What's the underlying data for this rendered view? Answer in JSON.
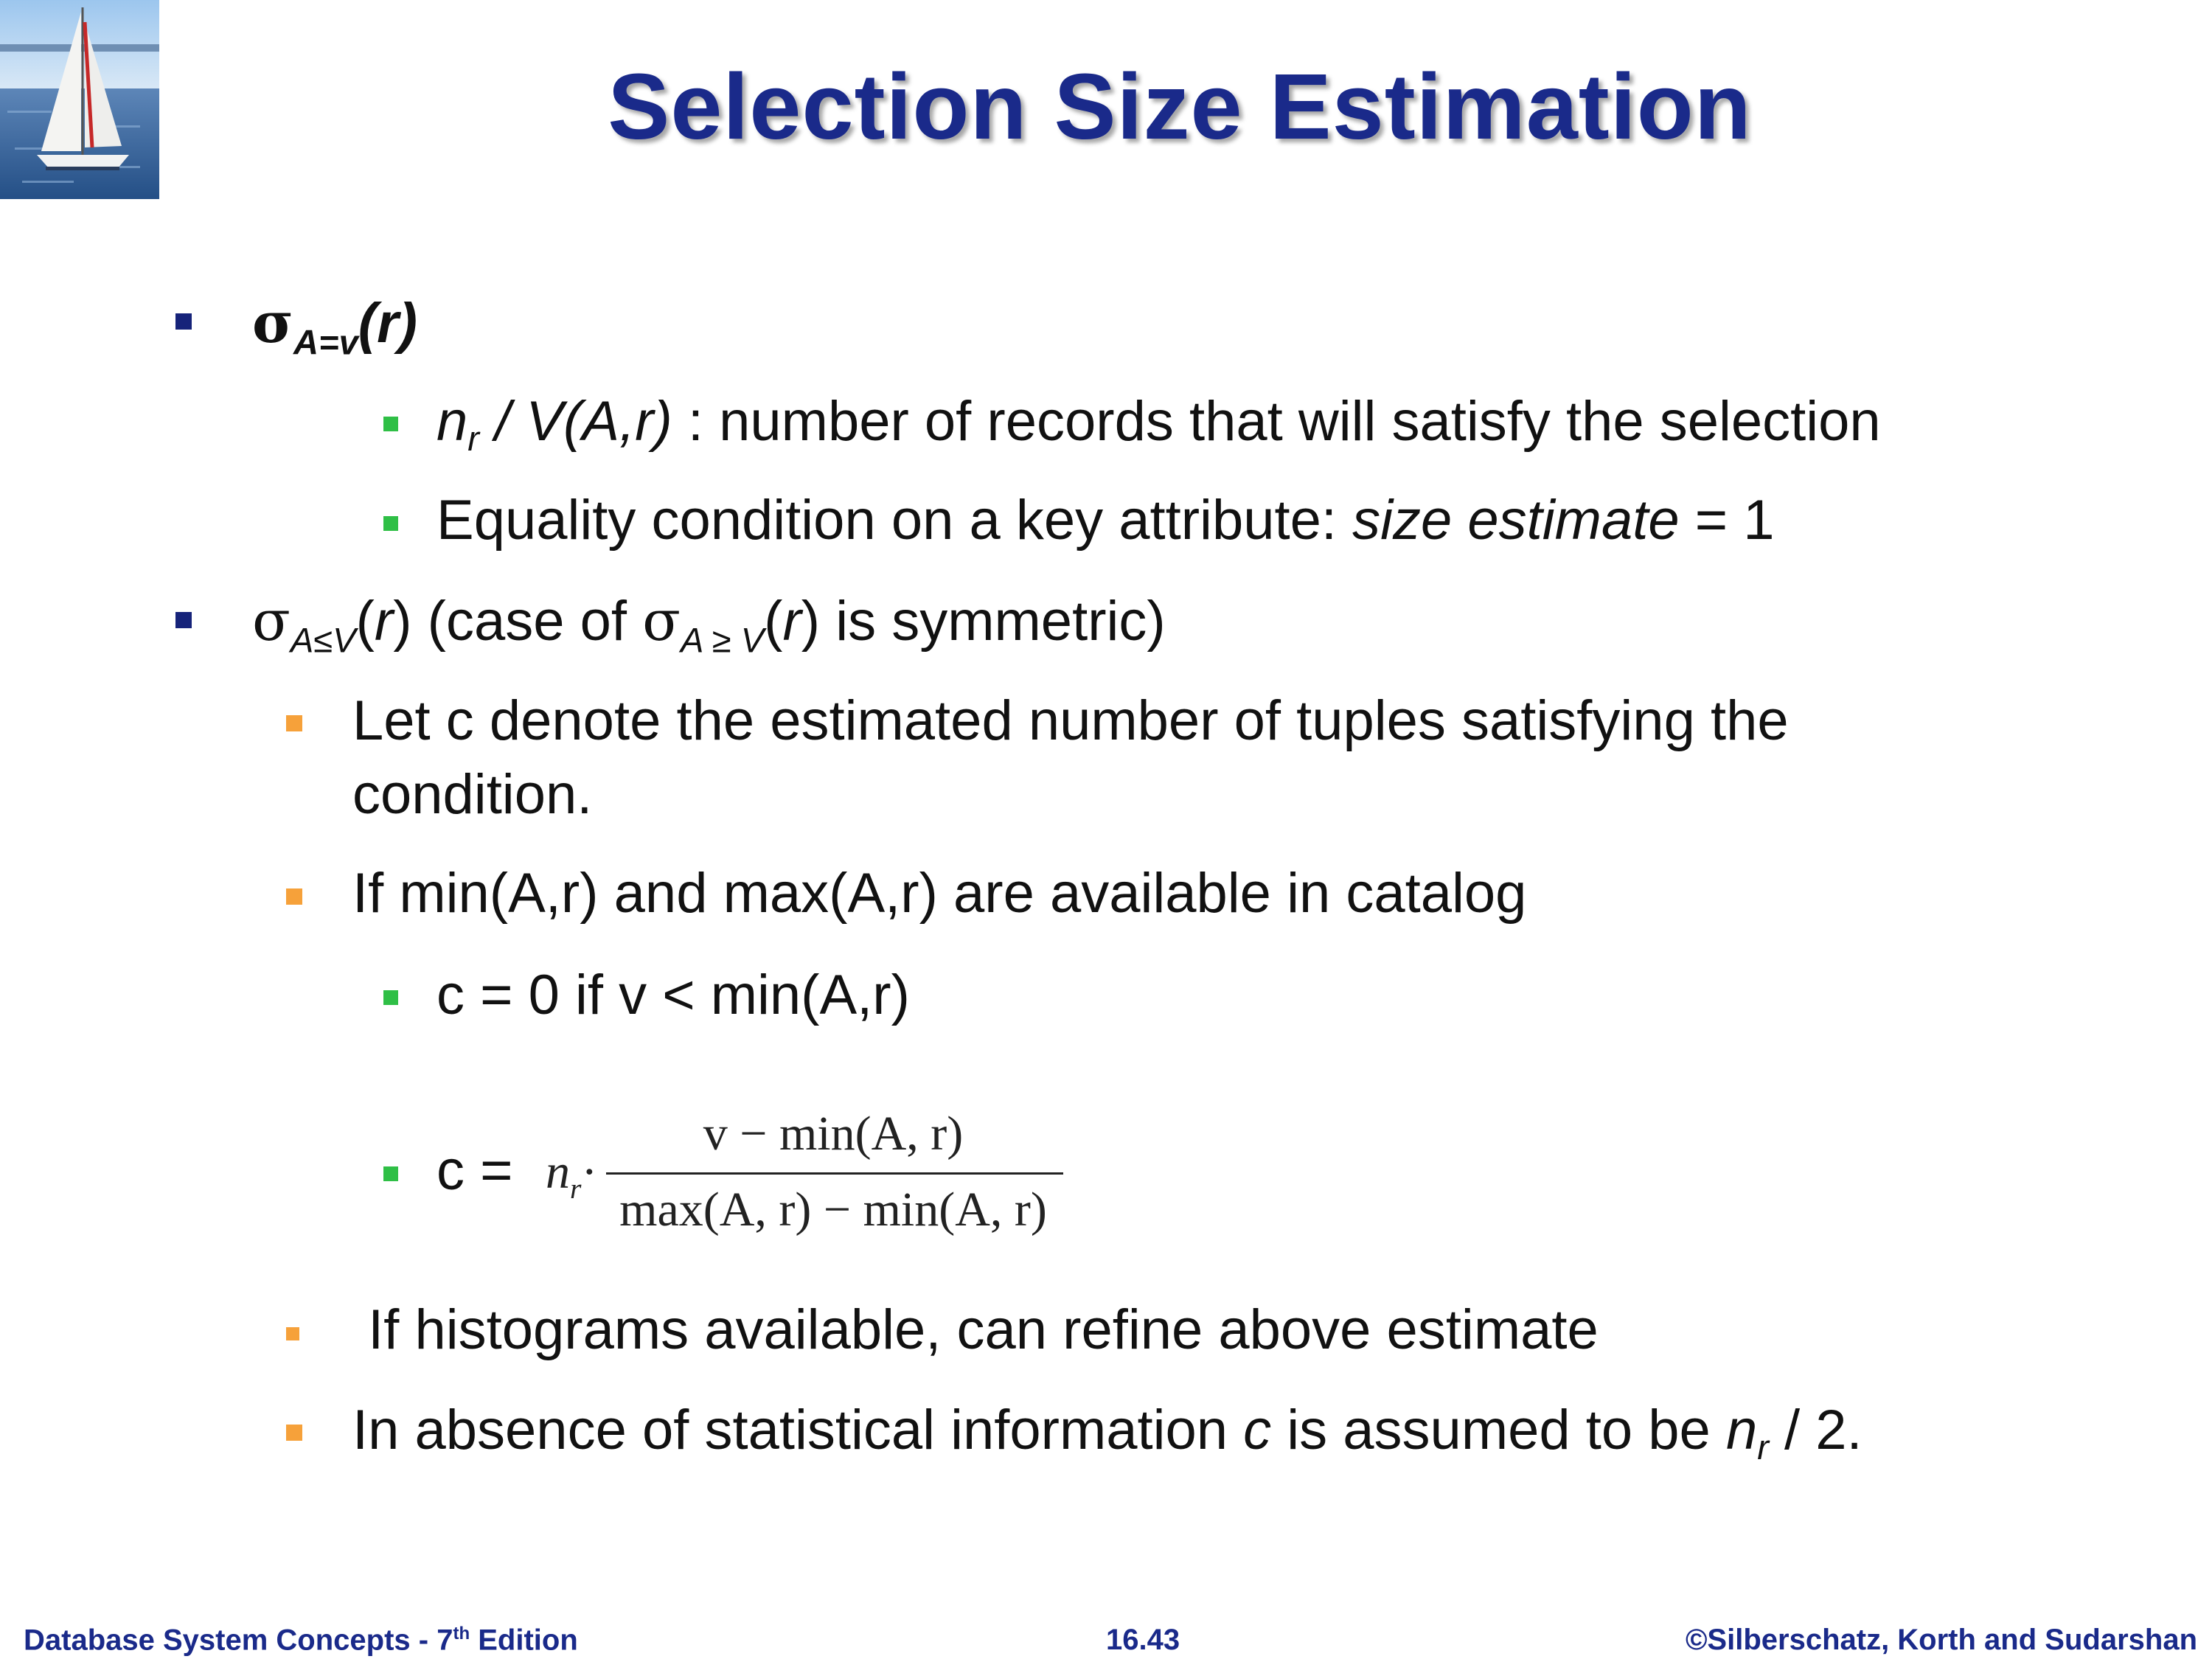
{
  "title": "Selection Size Estimation",
  "item1": {
    "sigma": "σ",
    "sub": "A=v",
    "arg": "(r)"
  },
  "item1_sub1": {
    "n": "n",
    "n_sub": "r",
    "expr": " / V(A,r)",
    "rest": " : number of records that will satisfy the selection"
  },
  "item1_sub2": {
    "text": "Equality condition on a key attribute: ",
    "italic": "size estimate",
    "rest": " = 1"
  },
  "item2": {
    "sigma1": "σ",
    "sub1": "A≤V",
    "r1": "r",
    "mid": ") (case of ",
    "sigma2": "σ",
    "sub2": "A ≥ V",
    "r2": "r",
    "end": ") is symmetric)"
  },
  "item2_sub1": {
    "line1": "Let c denote  the estimated number of tuples satisfying the",
    "line2": "condition."
  },
  "item2_sub2": "If min(A,r) and max(A,r) are available in catalog",
  "item2_sub2_a": "c = 0 if v < min(A,r)",
  "item2_sub2_b": {
    "label": "c = ",
    "n": "n",
    "n_sub": "r",
    "dot": "·",
    "numerator": "v − min(A, r)",
    "denominator": "max(A, r) − min(A, r)"
  },
  "item2_sub3": " If histograms available, can refine above estimate",
  "item2_sub4": {
    "text": "In absence of statistical information ",
    "c": "c",
    "mid": " is assumed to be ",
    "n": "n",
    "n_sub": "r",
    "end": " / 2."
  },
  "footer": {
    "left": "Database System Concepts - 7",
    "left_sup": "th",
    "left_end": " Edition",
    "center": "16.43",
    "right": "©Silberschatz, Korth and Sudarshan"
  },
  "colors": {
    "title": "#1a2a8a",
    "bullet_level1": "#16237a",
    "bullet_green": "#2fbf46",
    "bullet_orange": "#f6a13a"
  }
}
